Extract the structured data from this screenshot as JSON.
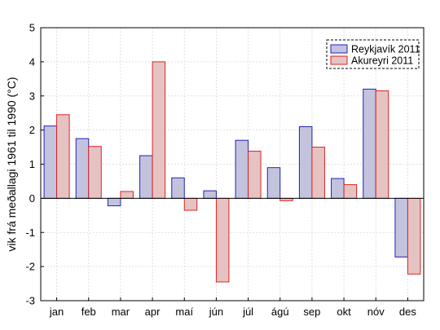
{
  "chart_data": {
    "type": "bar",
    "title": "",
    "xlabel": "",
    "ylabel": "vik frá meðallagi 1961 til 1990 (°C)",
    "ylim": [
      -3,
      5
    ],
    "yticks": [
      -3,
      -2,
      -1,
      0,
      1,
      2,
      3,
      4,
      5
    ],
    "grid": true,
    "legend_position": "top-right",
    "categories": [
      "jan",
      "feb",
      "mar",
      "apr",
      "maí",
      "jún",
      "júl",
      "ágú",
      "sep",
      "okt",
      "nóv",
      "des"
    ],
    "series": [
      {
        "name": "Reykjavík 2011",
        "values": [
          2.12,
          1.75,
          -0.22,
          1.25,
          0.6,
          0.22,
          1.7,
          0.9,
          2.1,
          0.58,
          3.2,
          -1.72
        ],
        "fill": "#c3c3dd",
        "stroke": "#2222bb"
      },
      {
        "name": "Akureyri 2011",
        "values": [
          2.45,
          1.52,
          0.2,
          4.0,
          -0.35,
          -2.45,
          1.38,
          -0.07,
          1.5,
          0.4,
          3.15,
          -2.22
        ],
        "fill": "#e5c3c3",
        "stroke": "#dd2222"
      }
    ]
  }
}
